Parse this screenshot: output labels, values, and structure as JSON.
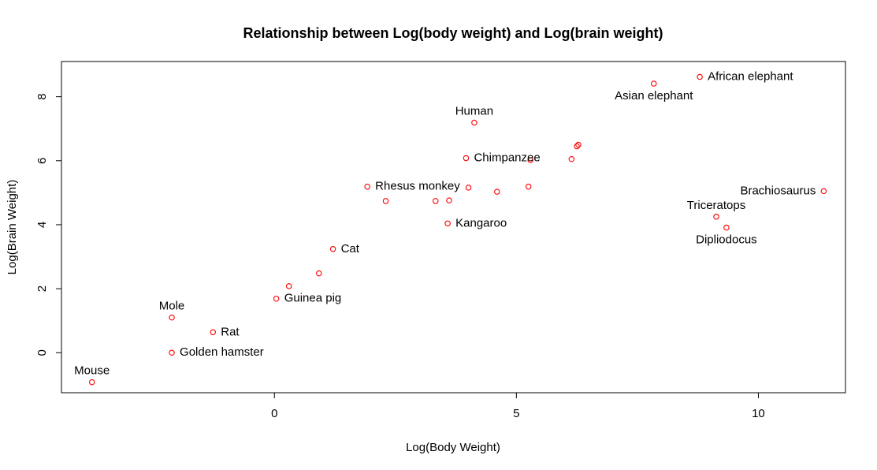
{
  "chart_data": {
    "type": "scatter",
    "title": "Relationship between Log(body weight) and Log(brain weight)",
    "xlabel": "Log(Body Weight)",
    "ylabel": "Log(Brain Weight)",
    "xlim": [
      -4.4,
      11.8
    ],
    "ylim": [
      -1.25,
      9.1
    ],
    "x_ticks": [
      0,
      5,
      10
    ],
    "y_ticks": [
      0,
      2,
      4,
      6,
      8
    ],
    "grid": false,
    "legend": "none",
    "point_color": "#ff0000",
    "points": [
      {
        "x": -3.77,
        "y": -0.92,
        "label": "Mouse",
        "label_pos": "top"
      },
      {
        "x": -2.12,
        "y": 1.1,
        "label": "Mole",
        "label_pos": "top"
      },
      {
        "x": -2.12,
        "y": 0.0,
        "label": "Golden hamster",
        "label_pos": "right"
      },
      {
        "x": -1.27,
        "y": 0.64,
        "label": "Rat",
        "label_pos": "right"
      },
      {
        "x": 0.04,
        "y": 1.69,
        "label": "Guinea pig",
        "label_pos": "right"
      },
      {
        "x": 0.3,
        "y": 2.08,
        "label": "",
        "label_pos": "none"
      },
      {
        "x": 0.92,
        "y": 2.48,
        "label": "",
        "label_pos": "none"
      },
      {
        "x": 1.21,
        "y": 3.24,
        "label": "Cat",
        "label_pos": "right"
      },
      {
        "x": 1.92,
        "y": 5.19,
        "label": "Rhesus monkey",
        "label_pos": "right"
      },
      {
        "x": 2.3,
        "y": 4.74,
        "label": "",
        "label_pos": "none"
      },
      {
        "x": 3.33,
        "y": 4.74,
        "label": "",
        "label_pos": "none"
      },
      {
        "x": 3.58,
        "y": 4.04,
        "label": "Kangaroo",
        "label_pos": "right"
      },
      {
        "x": 3.61,
        "y": 4.76,
        "label": "",
        "label_pos": "none"
      },
      {
        "x": 3.96,
        "y": 6.08,
        "label": "Chimpanzee",
        "label_pos": "right"
      },
      {
        "x": 4.01,
        "y": 5.16,
        "label": "",
        "label_pos": "none"
      },
      {
        "x": 4.13,
        "y": 7.19,
        "label": "Human",
        "label_pos": "top"
      },
      {
        "x": 4.6,
        "y": 5.03,
        "label": "",
        "label_pos": "none"
      },
      {
        "x": 5.25,
        "y": 5.19,
        "label": "",
        "label_pos": "none"
      },
      {
        "x": 5.29,
        "y": 6.02,
        "label": "",
        "label_pos": "none"
      },
      {
        "x": 6.14,
        "y": 6.05,
        "label": "",
        "label_pos": "none"
      },
      {
        "x": 6.25,
        "y": 6.45,
        "label": "",
        "label_pos": "none"
      },
      {
        "x": 6.28,
        "y": 6.5,
        "label": "",
        "label_pos": "none"
      },
      {
        "x": 7.84,
        "y": 8.41,
        "label": "Asian elephant",
        "label_pos": "bottom"
      },
      {
        "x": 8.79,
        "y": 8.62,
        "label": "African elephant",
        "label_pos": "right"
      },
      {
        "x": 9.13,
        "y": 4.25,
        "label": "Triceratops",
        "label_pos": "top"
      },
      {
        "x": 9.34,
        "y": 3.91,
        "label": "Dipliodocus",
        "label_pos": "bottom"
      },
      {
        "x": 11.35,
        "y": 5.05,
        "label": "Brachiosaurus",
        "label_pos": "left"
      }
    ]
  }
}
